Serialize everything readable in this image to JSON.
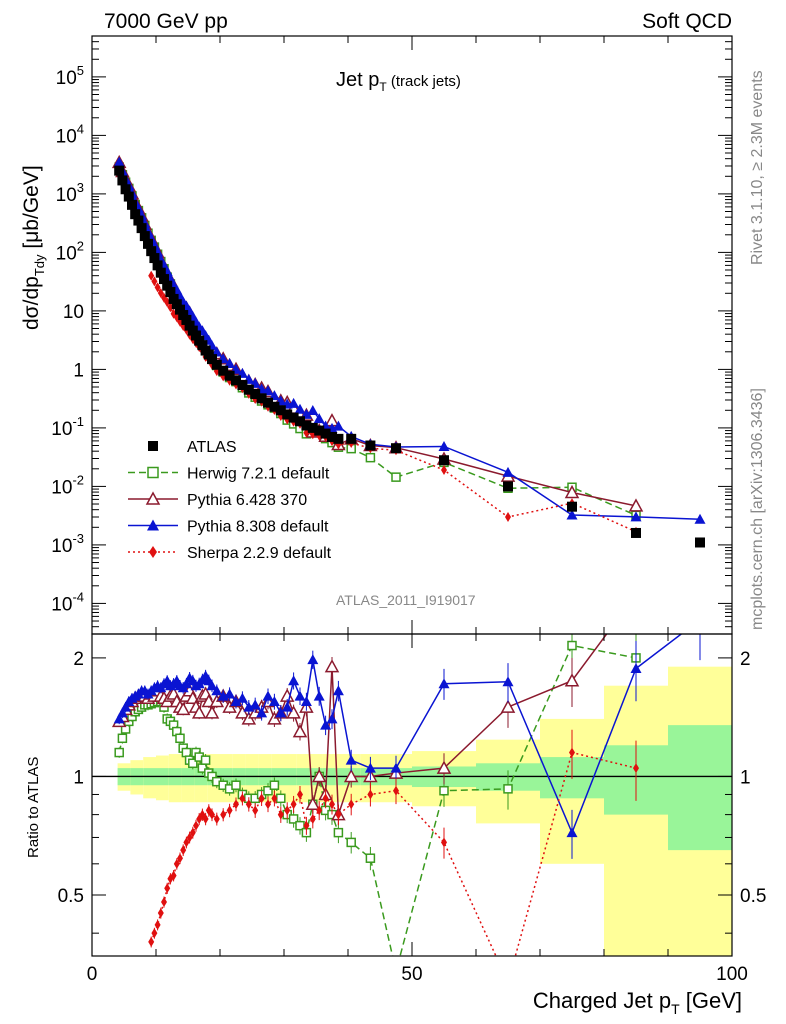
{
  "header": {
    "left": "7000 GeV pp",
    "right": "Soft QCD"
  },
  "side": {
    "rivet": "Rivet 3.1.10, ≥ 2.3M events",
    "mcplots": "mcplots.cern.ch [arXiv:1306.3436]"
  },
  "chart_data": {
    "type": "scatter",
    "title": "Jet pT (track jets)",
    "watermark": "ATLAS_2011_I919017",
    "xlabel": "Charged Jet pT [GeV]",
    "ylabel": "dσ/dpTdy [μb/GeV]",
    "ratio_ylabel": "Ratio to ATLAS",
    "xlim": [
      0,
      100
    ],
    "ylim_main": [
      3e-05,
      500000.0
    ],
    "yscale_main": "log",
    "ylim_ratio": [
      0.35,
      2.3
    ],
    "yscale_ratio": "log",
    "x_ticks": [
      0,
      50,
      100
    ],
    "main_y_ticks": [
      "10^-4",
      "10^-3",
      "10^-2",
      "10^-1",
      "1",
      "10",
      "10^2",
      "10^3",
      "10^4",
      "10^5"
    ],
    "ratio_y_ticks": [
      "0.5",
      "1",
      "2"
    ],
    "legend_position": "lower-left",
    "data": {
      "name": "ATLAS",
      "color": "#000000",
      "marker": "square",
      "x": [
        4.25,
        4.75,
        5.25,
        5.75,
        6.25,
        6.75,
        7.25,
        7.75,
        8.25,
        8.75,
        9.25,
        9.75,
        10.25,
        10.75,
        11.25,
        11.75,
        12.25,
        12.75,
        13.25,
        13.75,
        14.25,
        14.75,
        15.25,
        15.75,
        16.25,
        16.75,
        17.25,
        17.75,
        18.25,
        18.75,
        19.5,
        20.5,
        21.5,
        22.5,
        23.5,
        24.5,
        25.5,
        26.5,
        27.5,
        28.5,
        29.5,
        30.5,
        31.5,
        32.5,
        33.5,
        34.5,
        35.5,
        36.5,
        37.5,
        38.5,
        40.5,
        43.5,
        47.5,
        55,
        65,
        75,
        85,
        95
      ],
      "y": [
        2500,
        1700,
        1200,
        900,
        650,
        450,
        350,
        260,
        190,
        140,
        105,
        80,
        60,
        45,
        35,
        27,
        21,
        16,
        13,
        10.5,
        8.5,
        7,
        5.6,
        4.6,
        3.8,
        3.1,
        2.6,
        2.1,
        1.8,
        1.5,
        1.2,
        0.95,
        0.78,
        0.65,
        0.54,
        0.45,
        0.38,
        0.32,
        0.27,
        0.23,
        0.2,
        0.17,
        0.15,
        0.13,
        0.11,
        0.1,
        0.09,
        0.08,
        0.07,
        0.065,
        0.065,
        0.05,
        0.045,
        0.028,
        0.01,
        0.0045,
        0.0016,
        0.0011
      ]
    },
    "ratio_band": {
      "x_edges": [
        4,
        6,
        8,
        10,
        12,
        14,
        16,
        18,
        20,
        22,
        24,
        26,
        28,
        30,
        32,
        34,
        36,
        38,
        40,
        42,
        45,
        50,
        60,
        70,
        80,
        90,
        100
      ],
      "stat_half_width": [
        0.05,
        0.05,
        0.05,
        0.05,
        0.05,
        0.05,
        0.05,
        0.05,
        0.05,
        0.05,
        0.05,
        0.05,
        0.05,
        0.05,
        0.05,
        0.05,
        0.05,
        0.05,
        0.05,
        0.05,
        0.05,
        0.06,
        0.08,
        0.12,
        0.2,
        0.35
      ],
      "total_half_width": [
        0.08,
        0.1,
        0.12,
        0.13,
        0.14,
        0.14,
        0.14,
        0.14,
        0.14,
        0.14,
        0.14,
        0.14,
        0.14,
        0.14,
        0.14,
        0.14,
        0.14,
        0.14,
        0.14,
        0.14,
        0.14,
        0.16,
        0.24,
        0.4,
        0.7,
        0.9
      ]
    },
    "series": [
      {
        "name": "Herwig 7.2.1 default",
        "color": "#3a9a1e",
        "marker": "open-square",
        "dash": "7,4",
        "x": [
          4.25,
          4.75,
          5.25,
          5.75,
          6.25,
          6.75,
          7.25,
          7.75,
          8.25,
          8.75,
          9.25,
          9.75,
          10.25,
          10.75,
          11.25,
          11.75,
          12.25,
          12.75,
          13.25,
          13.75,
          14.25,
          14.75,
          15.25,
          15.75,
          16.25,
          16.75,
          17.25,
          17.75,
          18.25,
          18.75,
          19.5,
          20.5,
          21.5,
          22.5,
          23.5,
          24.5,
          25.5,
          26.5,
          27.5,
          28.5,
          29.5,
          30.5,
          31.5,
          32.5,
          33.5,
          34.5,
          35.5,
          36.5,
          37.5,
          38.5,
          40.5,
          43.5,
          47.5,
          55,
          65,
          75,
          85
        ],
        "ratio": [
          1.15,
          1.25,
          1.32,
          1.38,
          1.42,
          1.46,
          1.48,
          1.5,
          1.52,
          1.52,
          1.53,
          1.54,
          1.55,
          1.55,
          1.5,
          1.4,
          1.38,
          1.35,
          1.3,
          1.25,
          1.18,
          1.15,
          1.1,
          1.08,
          1.15,
          1.12,
          1.05,
          1.1,
          1.02,
          1.0,
          0.97,
          0.95,
          0.93,
          0.95,
          0.9,
          0.88,
          0.88,
          0.9,
          0.92,
          0.95,
          0.88,
          0.8,
          0.78,
          0.75,
          0.72,
          0.85,
          1.0,
          0.82,
          0.8,
          0.72,
          0.68,
          0.62,
          0.32,
          0.92,
          0.93,
          2.15,
          2.0
        ]
      },
      {
        "name": "Pythia 6.428 370",
        "color": "#8b1a2e",
        "marker": "open-triangle",
        "dash": "",
        "x": [
          4.25,
          4.75,
          5.25,
          5.75,
          6.25,
          6.75,
          7.25,
          7.75,
          8.25,
          8.75,
          9.25,
          9.75,
          10.25,
          10.75,
          11.25,
          11.75,
          12.25,
          12.75,
          13.25,
          13.75,
          14.25,
          14.75,
          15.25,
          15.75,
          16.25,
          16.75,
          17.25,
          17.75,
          18.25,
          18.75,
          19.5,
          20.5,
          21.5,
          22.5,
          23.5,
          24.5,
          25.5,
          26.5,
          27.5,
          28.5,
          29.5,
          30.5,
          31.5,
          32.5,
          33.5,
          34.5,
          35.5,
          36.5,
          37.5,
          38.5,
          40.5,
          43.5,
          47.5,
          55,
          65,
          75,
          85
        ],
        "ratio": [
          1.38,
          1.42,
          1.48,
          1.52,
          1.55,
          1.58,
          1.6,
          1.62,
          1.6,
          1.58,
          1.62,
          1.6,
          1.65,
          1.6,
          1.58,
          1.55,
          1.6,
          1.62,
          1.55,
          1.5,
          1.48,
          1.6,
          1.65,
          1.58,
          1.5,
          1.45,
          1.6,
          1.62,
          1.55,
          1.45,
          1.55,
          1.6,
          1.5,
          1.55,
          1.45,
          1.4,
          1.45,
          1.5,
          1.55,
          1.4,
          1.45,
          1.6,
          1.45,
          1.3,
          1.5,
          0.85,
          1.0,
          0.9,
          1.9,
          0.8,
          1.0,
          1.0,
          1.02,
          1.05,
          1.5,
          1.75,
          2.9
        ]
      },
      {
        "name": "Pythia 8.308 default",
        "color": "#0a14d2",
        "marker": "filled-triangle",
        "dash": "",
        "x": [
          4.25,
          4.75,
          5.25,
          5.75,
          6.25,
          6.75,
          7.25,
          7.75,
          8.25,
          8.75,
          9.25,
          9.75,
          10.25,
          10.75,
          11.25,
          11.75,
          12.25,
          12.75,
          13.25,
          13.75,
          14.25,
          14.75,
          15.25,
          15.75,
          16.25,
          16.75,
          17.25,
          17.75,
          18.25,
          18.75,
          19.5,
          20.5,
          21.5,
          22.5,
          23.5,
          24.5,
          25.5,
          26.5,
          27.5,
          28.5,
          29.5,
          30.5,
          31.5,
          32.5,
          33.5,
          34.5,
          35.5,
          36.5,
          37.5,
          38.5,
          40.5,
          43.5,
          47.5,
          55,
          65,
          75,
          85,
          95
        ],
        "ratio": [
          1.4,
          1.45,
          1.5,
          1.55,
          1.58,
          1.6,
          1.62,
          1.65,
          1.65,
          1.62,
          1.65,
          1.68,
          1.7,
          1.68,
          1.72,
          1.75,
          1.7,
          1.72,
          1.75,
          1.7,
          1.68,
          1.72,
          1.78,
          1.75,
          1.7,
          1.72,
          1.76,
          1.8,
          1.75,
          1.7,
          1.65,
          1.6,
          1.62,
          1.55,
          1.58,
          1.5,
          1.52,
          1.45,
          1.6,
          1.55,
          1.45,
          1.5,
          1.75,
          1.6,
          1.55,
          1.98,
          1.6,
          1.35,
          1.4,
          1.65,
          1.1,
          1.05,
          1.05,
          1.72,
          1.74,
          0.72,
          1.88,
          2.5
        ]
      },
      {
        "name": "Sherpa 2.2.9 default",
        "color": "#e01010",
        "marker": "filled-diamond",
        "dash": "2,3",
        "x": [
          9.25,
          9.75,
          10.25,
          10.75,
          11.25,
          11.75,
          12.25,
          12.75,
          13.25,
          13.75,
          14.25,
          14.75,
          15.25,
          15.75,
          16.25,
          16.75,
          17.25,
          17.75,
          18.25,
          18.75,
          19.5,
          20.5,
          21.5,
          22.5,
          23.5,
          24.5,
          25.5,
          26.5,
          27.5,
          28.5,
          29.5,
          30.5,
          31.5,
          32.5,
          33.5,
          34.5,
          35.5,
          36.5,
          37.5,
          38.5,
          40.5,
          43.5,
          47.5,
          55,
          65,
          75,
          85
        ],
        "ratio": [
          0.38,
          0.4,
          0.42,
          0.45,
          0.48,
          0.52,
          0.55,
          0.56,
          0.6,
          0.62,
          0.65,
          0.68,
          0.7,
          0.72,
          0.75,
          0.78,
          0.8,
          0.78,
          0.82,
          0.8,
          0.78,
          0.8,
          0.82,
          0.85,
          0.88,
          0.85,
          0.82,
          0.88,
          0.85,
          0.88,
          0.8,
          0.82,
          0.85,
          0.9,
          0.75,
          0.78,
          0.82,
          0.88,
          0.85,
          0.8,
          0.85,
          0.9,
          0.92,
          0.68,
          0.3,
          1.15,
          1.05
        ]
      }
    ]
  }
}
